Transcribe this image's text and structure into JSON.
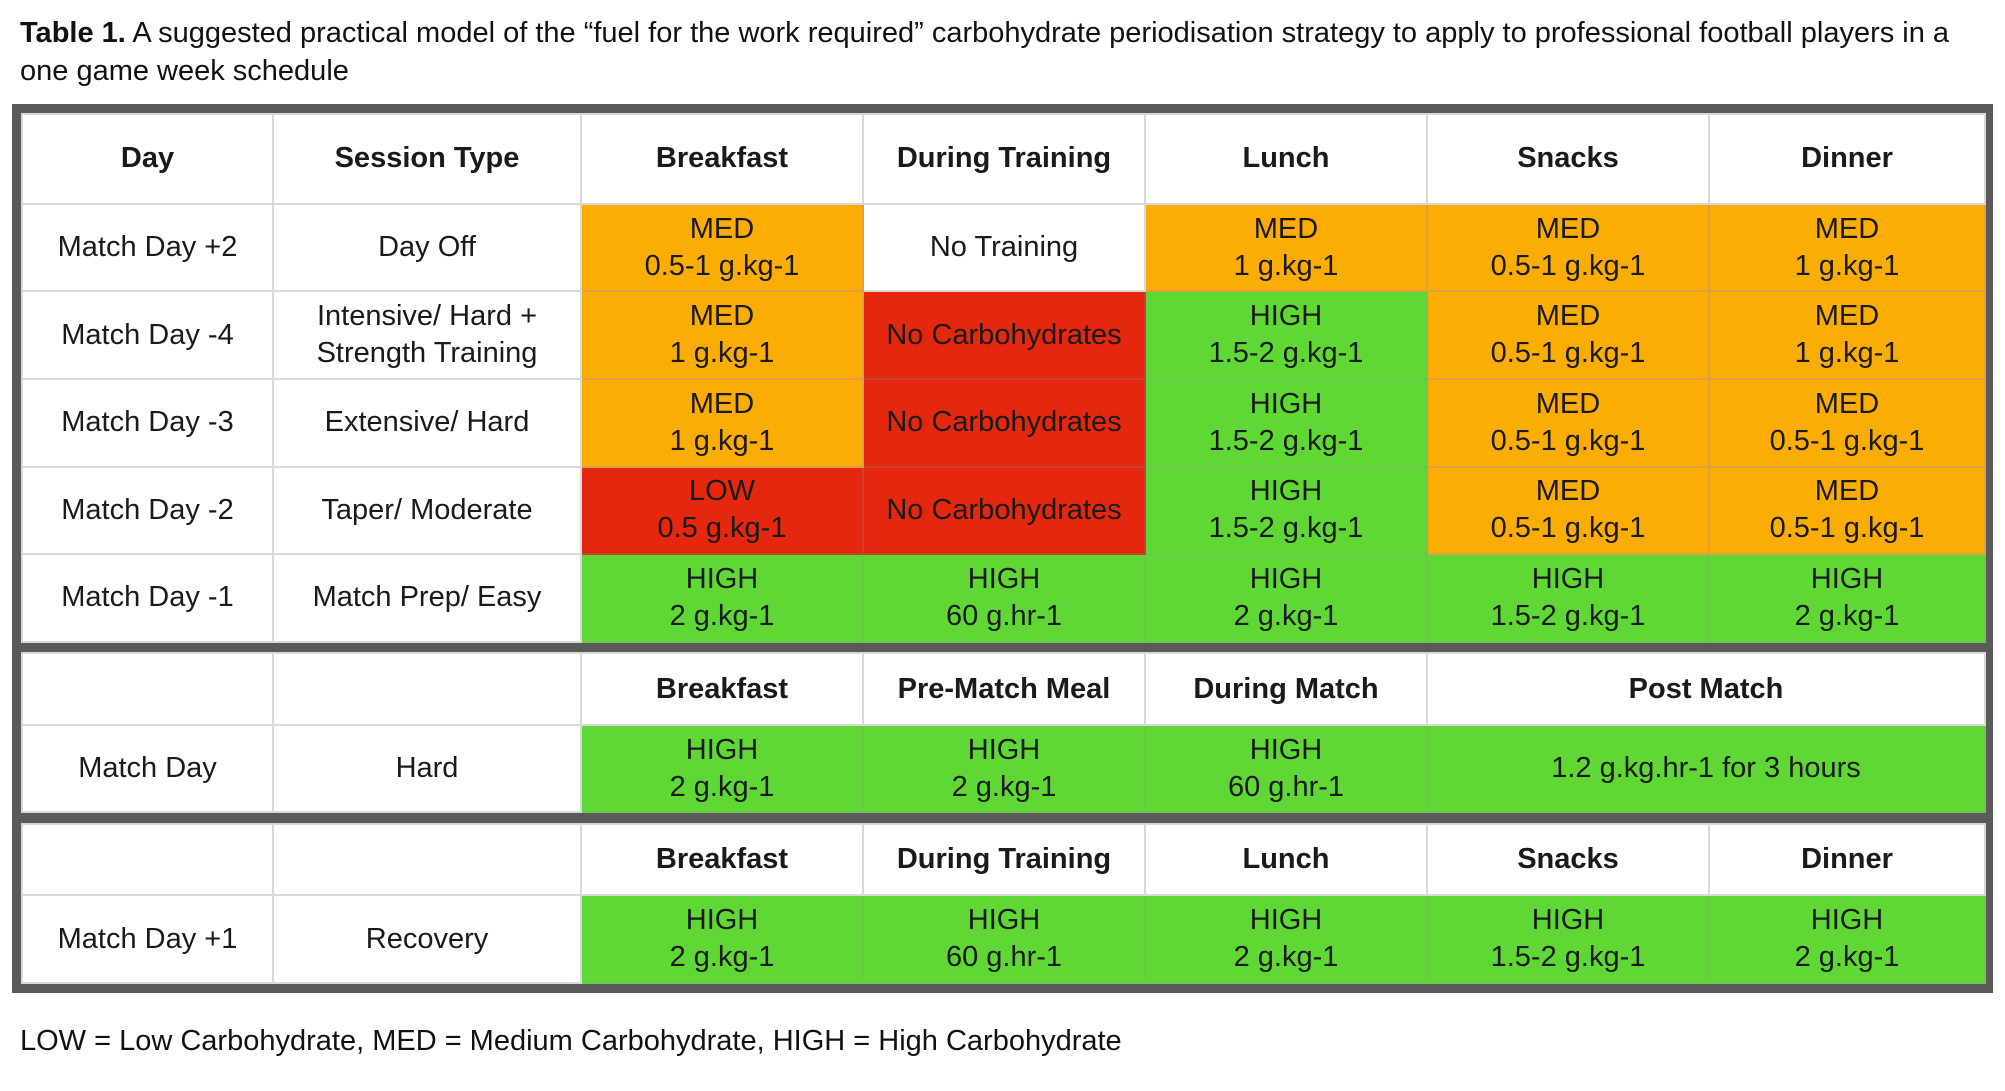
{
  "caption": {
    "label": "Table 1.",
    "text": "A suggested practical model of the “fuel for the work required” carbohydrate periodisation strategy to apply to professional football players in a one game week schedule"
  },
  "colors": {
    "MED": "#fbad04",
    "LOW": "#e5270f",
    "HIGH": "#5fd835",
    "none": "#e5270f",
    "border": "#5a5a5a"
  },
  "header1": [
    "Day",
    "Session Type",
    "Breakfast",
    "During Training",
    "Lunch",
    "Snacks",
    "Dinner"
  ],
  "rows1": [
    {
      "day": "Match Day +2",
      "session": [
        "Day Off"
      ],
      "cells": [
        {
          "level": "MED",
          "lines": [
            "MED",
            "0.5-1 g.kg-1"
          ]
        },
        {
          "level": "",
          "lines": [
            "No Training"
          ]
        },
        {
          "level": "MED",
          "lines": [
            "MED",
            "1 g.kg-1"
          ]
        },
        {
          "level": "MED",
          "lines": [
            "MED",
            "0.5-1 g.kg-1"
          ]
        },
        {
          "level": "MED",
          "lines": [
            "MED",
            "1 g.kg-1"
          ]
        }
      ]
    },
    {
      "day": "Match Day -4",
      "session": [
        "Intensive/ Hard +",
        "Strength Training"
      ],
      "cells": [
        {
          "level": "MED",
          "lines": [
            "MED",
            "1 g.kg-1"
          ]
        },
        {
          "level": "none",
          "lines": [
            "No Carbohydrates"
          ]
        },
        {
          "level": "HIGH",
          "lines": [
            "HIGH",
            "1.5-2 g.kg-1"
          ]
        },
        {
          "level": "MED",
          "lines": [
            "MED",
            "0.5-1 g.kg-1"
          ]
        },
        {
          "level": "MED",
          "lines": [
            "MED",
            "1 g.kg-1"
          ]
        }
      ]
    },
    {
      "day": "Match Day -3",
      "session": [
        "Extensive/ Hard"
      ],
      "cells": [
        {
          "level": "MED",
          "lines": [
            "MED",
            "1 g.kg-1"
          ]
        },
        {
          "level": "none",
          "lines": [
            "No Carbohydrates"
          ]
        },
        {
          "level": "HIGH",
          "lines": [
            "HIGH",
            "1.5-2 g.kg-1"
          ]
        },
        {
          "level": "MED",
          "lines": [
            "MED",
            "0.5-1 g.kg-1"
          ]
        },
        {
          "level": "MED",
          "lines": [
            "MED",
            "0.5-1 g.kg-1"
          ]
        }
      ]
    },
    {
      "day": "Match Day -2",
      "session": [
        "Taper/ Moderate"
      ],
      "cells": [
        {
          "level": "LOW",
          "lines": [
            "LOW",
            "0.5 g.kg-1"
          ]
        },
        {
          "level": "none",
          "lines": [
            "No Carbohydrates"
          ]
        },
        {
          "level": "HIGH",
          "lines": [
            "HIGH",
            "1.5-2 g.kg-1"
          ]
        },
        {
          "level": "MED",
          "lines": [
            "MED",
            "0.5-1 g.kg-1"
          ]
        },
        {
          "level": "MED",
          "lines": [
            "MED",
            "0.5-1 g.kg-1"
          ]
        }
      ]
    },
    {
      "day": "Match Day -1",
      "session": [
        "Match Prep/ Easy"
      ],
      "cells": [
        {
          "level": "HIGH",
          "lines": [
            "HIGH",
            "2 g.kg-1"
          ]
        },
        {
          "level": "HIGH",
          "lines": [
            "HIGH",
            "60 g.hr-1"
          ]
        },
        {
          "level": "HIGH",
          "lines": [
            "HIGH",
            "2 g.kg-1"
          ]
        },
        {
          "level": "HIGH",
          "lines": [
            "HIGH",
            "1.5-2 g.kg-1"
          ]
        },
        {
          "level": "HIGH",
          "lines": [
            "HIGH",
            "2 g.kg-1"
          ]
        }
      ]
    }
  ],
  "header2": [
    "Breakfast",
    "Pre-Match Meal",
    "During Match",
    "Post Match"
  ],
  "match_row": {
    "day": "Match Day",
    "session": "Hard",
    "cells": [
      {
        "level": "HIGH",
        "lines": [
          "HIGH",
          "2 g.kg-1"
        ]
      },
      {
        "level": "HIGH",
        "lines": [
          "HIGH",
          "2 g.kg-1"
        ]
      },
      {
        "level": "HIGH",
        "lines": [
          "HIGH",
          "60 g.hr-1"
        ]
      },
      {
        "level": "HIGH",
        "lines": [
          "1.2 g.kg.hr-1 for 3 hours"
        ]
      }
    ]
  },
  "header3": [
    "Breakfast",
    "During Training",
    "Lunch",
    "Snacks",
    "Dinner"
  ],
  "recovery_row": {
    "day": "Match Day +1",
    "session": "Recovery",
    "cells": [
      {
        "level": "HIGH",
        "lines": [
          "HIGH",
          "2 g.kg-1"
        ]
      },
      {
        "level": "HIGH",
        "lines": [
          "HIGH",
          "60 g.hr-1"
        ]
      },
      {
        "level": "HIGH",
        "lines": [
          "HIGH",
          "2 g.kg-1"
        ]
      },
      {
        "level": "HIGH",
        "lines": [
          "HIGH",
          "1.5-2 g.kg-1"
        ]
      },
      {
        "level": "HIGH",
        "lines": [
          "HIGH",
          "2 g.kg-1"
        ]
      }
    ]
  },
  "footnote": "LOW = Low Carbohydrate, MED = Medium Carbohydrate, HIGH = High Carbohydrate"
}
